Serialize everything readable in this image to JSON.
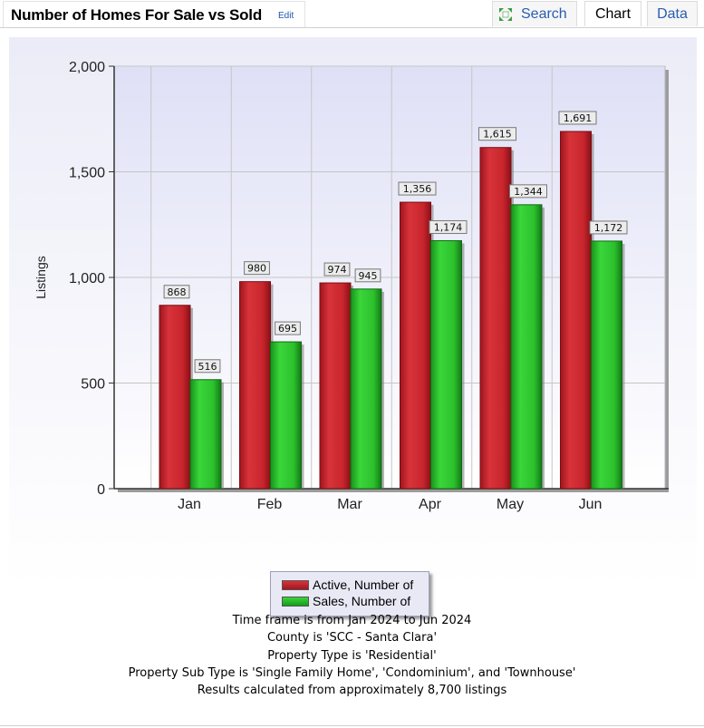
{
  "header": {
    "title": "Number of Homes For Sale vs Sold",
    "edit_label": "Edit"
  },
  "tabs": {
    "search": "Search",
    "chart": "Chart",
    "data": "Data"
  },
  "notes": [
    "Time frame is from Jan 2024 to Jun 2024",
    "County is 'SCC - Santa Clara'",
    "Property Type is 'Residential'",
    "Property Sub Type is 'Single Family Home', 'Condominium', and 'Townhouse'",
    "Results calculated from approximately 8,700 listings"
  ],
  "colors": {
    "active": "#c8252d",
    "sales": "#2cc12c",
    "plot_bg_top": "#dfe0f6",
    "plot_bg_bottom": "#ffffff",
    "link": "#2a5db0"
  },
  "chart_data": {
    "type": "bar",
    "title": "",
    "xlabel": "",
    "ylabel": "Listings",
    "categories": [
      "Jan",
      "Feb",
      "Mar",
      "Apr",
      "May",
      "Jun"
    ],
    "series": [
      {
        "name": "Active, Number of",
        "values": [
          868,
          980,
          974,
          1356,
          1615,
          1691
        ],
        "labels": [
          "868",
          "980",
          "974",
          "1,356",
          "1,615",
          "1,691"
        ]
      },
      {
        "name": "Sales, Number of",
        "values": [
          516,
          695,
          945,
          1174,
          1344,
          1172
        ],
        "labels": [
          "516",
          "695",
          "945",
          "1,174",
          "1,344",
          "1,172"
        ]
      }
    ],
    "ylim": [
      0,
      2000
    ],
    "yticks": [
      0,
      500,
      1000,
      1500,
      2000
    ],
    "ytick_labels": [
      "0",
      "500",
      "1,000",
      "1,500",
      "2,000"
    ],
    "grid": true,
    "legend_position": "bottom-center",
    "data_labels": true
  }
}
